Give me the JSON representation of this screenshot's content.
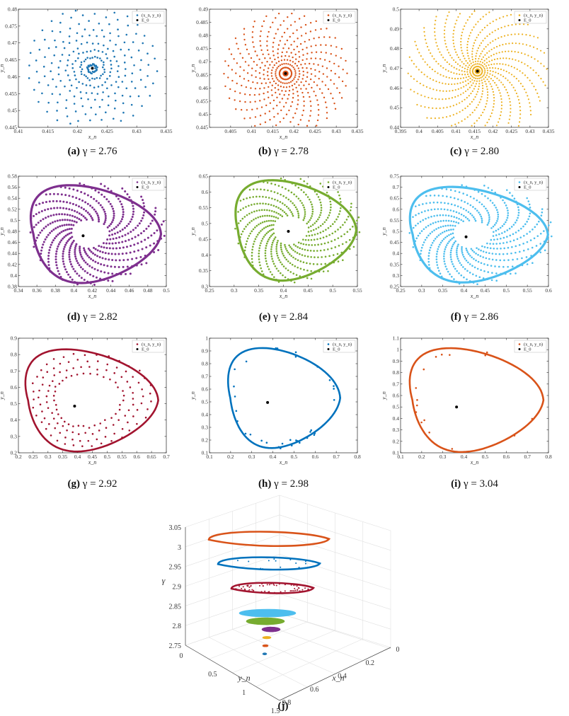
{
  "figure": {
    "panels": [
      {
        "id": "a",
        "caption_letter": "(a)",
        "caption_text": "γ = 2.76",
        "xlabel": "x_n",
        "ylabel": "y_n",
        "xlim": [
          0.41,
          0.435
        ],
        "ylim": [
          0.445,
          0.48
        ],
        "xticks": [
          "0.41",
          "0.415",
          "0.42",
          "0.425",
          "0.43",
          "0.435"
        ],
        "yticks": [
          "0.445",
          "0.45",
          "0.455",
          "0.46",
          "0.465",
          "0.47",
          "0.475",
          "0.48"
        ],
        "color": "#1f77b4",
        "pattern": "spiral-scatter",
        "fixed_point": [
          0.4225,
          0.4625
        ],
        "legend": [
          "(x_n, y_n)",
          "E_0"
        ]
      },
      {
        "id": "b",
        "caption_letter": "(b)",
        "caption_text": "γ = 2.78",
        "xlabel": "x_n",
        "ylabel": "y_n",
        "xlim": [
          0.4,
          0.435
        ],
        "ylim": [
          0.445,
          0.49
        ],
        "xticks": [
          "0.405",
          "0.41",
          "0.415",
          "0.42",
          "0.425",
          "0.43",
          "0.435"
        ],
        "yticks": [
          "0.445",
          "0.45",
          "0.455",
          "0.46",
          "0.465",
          "0.47",
          "0.475",
          "0.48",
          "0.485",
          "0.49"
        ],
        "color": "#d95319",
        "pattern": "spiral-arms",
        "fixed_point": [
          0.418,
          0.4655
        ],
        "legend": [
          "(x_n, y_n)",
          "E_0"
        ]
      },
      {
        "id": "c",
        "caption_letter": "(c)",
        "caption_text": "γ = 2.80",
        "xlabel": "x_n",
        "ylabel": "y_n",
        "xlim": [
          0.395,
          0.435
        ],
        "ylim": [
          0.44,
          0.5
        ],
        "xticks": [
          "0.395",
          "0.4",
          "0.405",
          "0.41",
          "0.415",
          "0.42",
          "0.425",
          "0.43",
          "0.435"
        ],
        "yticks": [
          "0.44",
          "0.45",
          "0.46",
          "0.47",
          "0.48",
          "0.49",
          "0.5"
        ],
        "color": "#edb120",
        "pattern": "spiral-arms",
        "fixed_point": [
          0.4158,
          0.4685
        ],
        "legend": [
          "(x_n, y_n)",
          "E_0"
        ]
      },
      {
        "id": "d",
        "caption_letter": "(d)",
        "caption_text": "γ = 2.82",
        "xlabel": "x_n",
        "ylabel": "y_n",
        "xlim": [
          0.34,
          0.5
        ],
        "ylim": [
          0.38,
          0.58
        ],
        "xticks": [
          "0.34",
          "0.36",
          "0.38",
          "0.4",
          "0.42",
          "0.44",
          "0.46",
          "0.48",
          "0.5"
        ],
        "yticks": [
          "0.38",
          "0.4",
          "0.42",
          "0.44",
          "0.46",
          "0.48",
          "0.5",
          "0.52",
          "0.54",
          "0.56",
          "0.58"
        ],
        "color": "#7e2f8e",
        "pattern": "dense-limit-cycle",
        "fixed_point": [
          0.41,
          0.472
        ],
        "cycle": {
          "cx": 0.415,
          "cy": 0.475,
          "rx": 0.069,
          "ry": 0.088
        },
        "legend": [
          "(x_n, y_n)",
          "E_0"
        ]
      },
      {
        "id": "e",
        "caption_letter": "(e)",
        "caption_text": "γ = 2.84",
        "xlabel": "x_n",
        "ylabel": "y_n",
        "xlim": [
          0.25,
          0.55
        ],
        "ylim": [
          0.3,
          0.65
        ],
        "xticks": [
          "0.25",
          "0.3",
          "0.35",
          "0.4",
          "0.45",
          "0.5",
          "0.55"
        ],
        "yticks": [
          "0.3",
          "0.35",
          "0.4",
          "0.45",
          "0.5",
          "0.55",
          "0.6",
          "0.65"
        ],
        "color": "#77ac30",
        "pattern": "dense-limit-cycle",
        "fixed_point": [
          0.41,
          0.475
        ],
        "cycle": {
          "cx": 0.41,
          "cy": 0.478,
          "rx": 0.12,
          "ry": 0.158
        },
        "legend": [
          "(x_n, y_n)",
          "E_0"
        ]
      },
      {
        "id": "f",
        "caption_letter": "(f)",
        "caption_text": "γ = 2.86",
        "xlabel": "x_n",
        "ylabel": "y_n",
        "xlim": [
          0.25,
          0.6
        ],
        "ylim": [
          0.25,
          0.75
        ],
        "xticks": [
          "0.25",
          "0.3",
          "0.35",
          "0.4",
          "0.45",
          "0.5",
          "0.55",
          "0.6"
        ],
        "yticks": [
          "0.25",
          "0.3",
          "0.35",
          "0.4",
          "0.45",
          "0.5",
          "0.55",
          "0.6",
          "0.65",
          "0.7",
          "0.75"
        ],
        "color": "#4dbeee",
        "pattern": "dense-limit-cycle",
        "fixed_point": [
          0.405,
          0.475
        ],
        "cycle": {
          "cx": 0.415,
          "cy": 0.485,
          "rx": 0.16,
          "ry": 0.215
        },
        "legend": [
          "(x_n, y_n)",
          "E_0"
        ]
      },
      {
        "id": "g",
        "caption_letter": "(g)",
        "caption_text": "γ = 2.92",
        "xlabel": "x_n",
        "ylabel": "y_n",
        "xlim": [
          0.2,
          0.7
        ],
        "ylim": [
          0.2,
          0.9
        ],
        "xticks": [
          "0.2",
          "0.25",
          "0.3",
          "0.35",
          "0.4",
          "0.45",
          "0.5",
          "0.55",
          "0.6",
          "0.65",
          "0.7"
        ],
        "yticks": [
          "0.2",
          "0.3",
          "0.4",
          "0.5",
          "0.6",
          "0.7",
          "0.8",
          "0.9"
        ],
        "color": "#a2142f",
        "pattern": "limit-cycle-sparse",
        "fixed_point": [
          0.39,
          0.485
        ],
        "cycle": {
          "cx": 0.42,
          "cy": 0.52,
          "rx": 0.22,
          "ry": 0.31
        },
        "legend": [
          "(x_n, y_n)",
          "E_0"
        ]
      },
      {
        "id": "h",
        "caption_letter": "(h)",
        "caption_text": "γ = 2.98",
        "xlabel": "x_n",
        "ylabel": "y_n",
        "xlim": [
          0.1,
          0.8
        ],
        "ylim": [
          0.1,
          1.0
        ],
        "xticks": [
          "0.1",
          "0.2",
          "0.3",
          "0.4",
          "0.5",
          "0.6",
          "0.7",
          "0.8"
        ],
        "yticks": [
          "0.1",
          "0.2",
          "0.3",
          "0.4",
          "0.5",
          "0.6",
          "0.7",
          "0.8",
          "0.9",
          "1"
        ],
        "color": "#0072bd",
        "pattern": "limit-cycle-few",
        "fixed_point": [
          0.375,
          0.495
        ],
        "cycle": {
          "cx": 0.42,
          "cy": 0.53,
          "rx": 0.26,
          "ry": 0.39
        },
        "legend": [
          "(x_n, y_n)",
          "E_0"
        ]
      },
      {
        "id": "i",
        "caption_letter": "(i)",
        "caption_text": "γ = 3.04",
        "xlabel": "x_n",
        "ylabel": "y_n",
        "xlim": [
          0.1,
          0.8
        ],
        "ylim": [
          0.1,
          1.1
        ],
        "xticks": [
          "0.1",
          "0.2",
          "0.3",
          "0.4",
          "0.5",
          "0.6",
          "0.7",
          "0.8"
        ],
        "yticks": [
          "0.1",
          "0.2",
          "0.3",
          "0.4",
          "0.5",
          "0.6",
          "0.7",
          "0.8",
          "0.9",
          "1",
          "1.1"
        ],
        "color": "#d95319",
        "pattern": "limit-cycle-few",
        "fixed_point": [
          0.365,
          0.5
        ],
        "cycle": {
          "cx": 0.42,
          "cy": 0.56,
          "rx": 0.31,
          "ry": 0.45
        },
        "legend": [
          "(x_n, y_n)",
          "E_0"
        ]
      }
    ],
    "panel_j": {
      "caption": "(j)",
      "zlabel": "γ",
      "xlabel": "x_n",
      "ylabel": "y_n",
      "zticks": [
        "2.75",
        "2.8",
        "2.85",
        "2.9",
        "2.95",
        "3",
        "3.05"
      ],
      "yticks": [
        "0",
        "0.5",
        "1",
        "1.5"
      ],
      "xticks": [
        "0.8",
        "0.6",
        "0.4",
        "0.2",
        "0"
      ],
      "zlim": [
        2.75,
        3.05
      ]
    }
  },
  "chart_data": [
    {
      "type": "scatter",
      "panel": "a",
      "title": "",
      "xlabel": "x_n",
      "ylabel": "y_n",
      "xlim": [
        0.41,
        0.435
      ],
      "ylim": [
        0.445,
        0.48
      ],
      "series": [
        {
          "name": "(x_n, y_n)",
          "color": "#1f77b4",
          "description": "iterates spiral into fixed point"
        },
        {
          "name": "E_0",
          "x": [
            0.4225
          ],
          "y": [
            0.4625
          ],
          "color": "#000000"
        }
      ],
      "legend": "top-right"
    },
    {
      "type": "scatter",
      "panel": "b",
      "xlabel": "x_n",
      "ylabel": "y_n",
      "xlim": [
        0.4,
        0.435
      ],
      "ylim": [
        0.445,
        0.49
      ],
      "series": [
        {
          "name": "(x_n, y_n)",
          "color": "#d95319"
        },
        {
          "name": "E_0",
          "x": [
            0.418
          ],
          "y": [
            0.4655
          ],
          "color": "#000000"
        }
      ],
      "legend": "top-right"
    },
    {
      "type": "scatter",
      "panel": "c",
      "xlabel": "x_n",
      "ylabel": "y_n",
      "xlim": [
        0.395,
        0.435
      ],
      "ylim": [
        0.44,
        0.5
      ],
      "series": [
        {
          "name": "(x_n, y_n)",
          "color": "#edb120"
        },
        {
          "name": "E_0",
          "x": [
            0.4158
          ],
          "y": [
            0.4685
          ],
          "color": "#000000"
        }
      ],
      "legend": "top-right"
    },
    {
      "type": "scatter",
      "panel": "d",
      "xlabel": "x_n",
      "ylabel": "y_n",
      "xlim": [
        0.34,
        0.5
      ],
      "ylim": [
        0.38,
        0.58
      ],
      "series": [
        {
          "name": "(x_n, y_n)",
          "color": "#7e2f8e"
        },
        {
          "name": "E_0",
          "x": [
            0.41
          ],
          "y": [
            0.472
          ],
          "color": "#000000"
        }
      ],
      "legend": "top-right"
    },
    {
      "type": "scatter",
      "panel": "e",
      "xlabel": "x_n",
      "ylabel": "y_n",
      "xlim": [
        0.25,
        0.55
      ],
      "ylim": [
        0.3,
        0.65
      ],
      "series": [
        {
          "name": "(x_n, y_n)",
          "color": "#77ac30"
        },
        {
          "name": "E_0",
          "x": [
            0.41
          ],
          "y": [
            0.475
          ],
          "color": "#000000"
        }
      ],
      "legend": "top-right"
    },
    {
      "type": "scatter",
      "panel": "f",
      "xlabel": "x_n",
      "ylabel": "y_n",
      "xlim": [
        0.25,
        0.6
      ],
      "ylim": [
        0.25,
        0.75
      ],
      "series": [
        {
          "name": "(x_n, y_n)",
          "color": "#4dbeee"
        },
        {
          "name": "E_0",
          "x": [
            0.405
          ],
          "y": [
            0.475
          ],
          "color": "#000000"
        }
      ],
      "legend": "top-right"
    },
    {
      "type": "scatter",
      "panel": "g",
      "xlabel": "x_n",
      "ylabel": "y_n",
      "xlim": [
        0.2,
        0.7
      ],
      "ylim": [
        0.2,
        0.9
      ],
      "series": [
        {
          "name": "(x_n, y_n)",
          "color": "#a2142f"
        },
        {
          "name": "E_0",
          "x": [
            0.39
          ],
          "y": [
            0.485
          ],
          "color": "#000000"
        }
      ],
      "legend": "top-right"
    },
    {
      "type": "scatter",
      "panel": "h",
      "xlabel": "x_n",
      "ylabel": "y_n",
      "xlim": [
        0.1,
        0.8
      ],
      "ylim": [
        0.1,
        1.0
      ],
      "series": [
        {
          "name": "(x_n, y_n)",
          "color": "#0072bd"
        },
        {
          "name": "E_0",
          "x": [
            0.375
          ],
          "y": [
            0.495
          ],
          "color": "#000000"
        }
      ],
      "legend": "top-right"
    },
    {
      "type": "scatter",
      "panel": "i",
      "xlabel": "x_n",
      "ylabel": "y_n",
      "xlim": [
        0.1,
        0.8
      ],
      "ylim": [
        0.1,
        1.1
      ],
      "series": [
        {
          "name": "(x_n, y_n)",
          "color": "#d95319"
        },
        {
          "name": "E_0",
          "x": [
            0.365
          ],
          "y": [
            0.5
          ],
          "color": "#000000"
        }
      ],
      "legend": "top-right"
    },
    {
      "type": "scatter",
      "panel": "j",
      "xlabel": "x_n",
      "ylabel": "y_n",
      "zlabel": "γ",
      "zlim": [
        2.75,
        3.05
      ],
      "series": [
        {
          "name": "γ = 2.76",
          "z": 2.76,
          "color": "#1f77b4"
        },
        {
          "name": "γ = 2.78",
          "z": 2.78,
          "color": "#d95319"
        },
        {
          "name": "γ = 2.80",
          "z": 2.8,
          "color": "#edb120"
        },
        {
          "name": "γ = 2.82",
          "z": 2.82,
          "color": "#7e2f8e"
        },
        {
          "name": "γ = 2.84",
          "z": 2.84,
          "color": "#77ac30"
        },
        {
          "name": "γ = 2.86",
          "z": 2.86,
          "color": "#4dbeee"
        },
        {
          "name": "γ = 2.92",
          "z": 2.92,
          "color": "#a2142f"
        },
        {
          "name": "γ = 2.98",
          "z": 2.98,
          "color": "#0072bd"
        },
        {
          "name": "γ = 3.04",
          "z": 3.04,
          "color": "#d95319"
        }
      ]
    }
  ]
}
